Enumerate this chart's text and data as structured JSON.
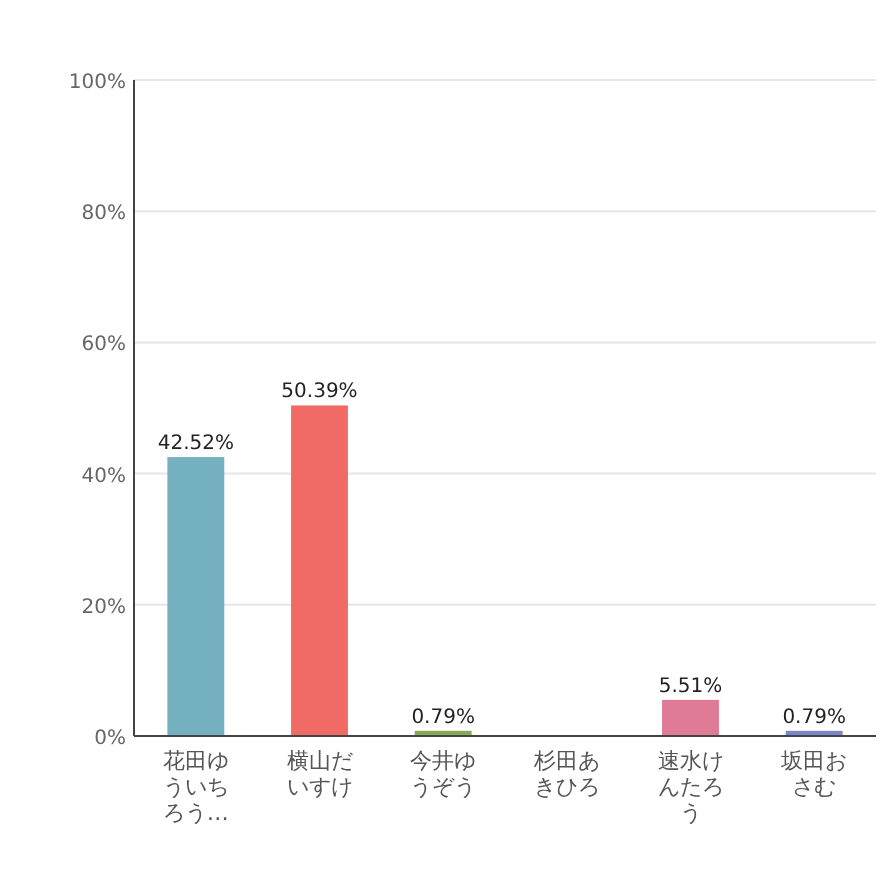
{
  "chart_data": {
    "type": "bar",
    "categories": [
      "花田ゆういちろう…",
      "横山だいすけ",
      "今井ゆうぞう",
      "杉田あきひろ",
      "速水けんたろう",
      "坂田おさむ"
    ],
    "values": [
      42.52,
      50.39,
      0.79,
      0,
      5.51,
      0.79
    ],
    "colors": [
      "#74b0c0",
      "#f06b66",
      "#86a957",
      "#a0a0a0",
      "#df7a97",
      "#7b86c8"
    ],
    "value_labels": [
      "42.52%",
      "50.39%",
      "0.79%",
      null,
      "5.51%",
      "0.79%"
    ],
    "ylim": [
      0,
      100
    ],
    "yticks": [
      {
        "value": 0,
        "label": "0%"
      },
      {
        "value": 20,
        "label": "20%"
      },
      {
        "value": 40,
        "label": "40%"
      },
      {
        "value": 60,
        "label": "60%"
      },
      {
        "value": 80,
        "label": "80%"
      },
      {
        "value": 100,
        "label": "100%"
      }
    ],
    "grid": "y"
  }
}
